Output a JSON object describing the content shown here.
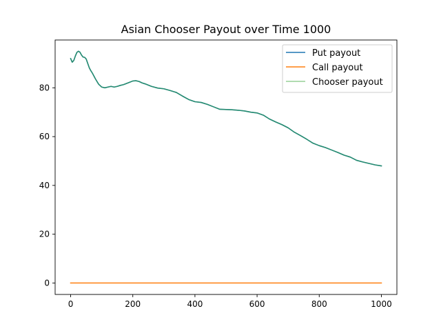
{
  "chart_data": {
    "type": "line",
    "title": "Asian Chooser Payout over Time 1000",
    "xlabel": "",
    "ylabel": "",
    "xlim": [
      -50,
      1050
    ],
    "ylim": [
      -4.7,
      99.6
    ],
    "xticks": [
      0,
      200,
      400,
      600,
      800,
      1000
    ],
    "yticks": [
      0,
      20,
      40,
      60,
      80
    ],
    "grid": false,
    "legend": "top-right",
    "series": [
      {
        "name": "Put payout",
        "color": "#1f77b4",
        "x": [
          0,
          5,
          10,
          15,
          20,
          25,
          30,
          35,
          40,
          45,
          50,
          55,
          60,
          65,
          70,
          75,
          80,
          90,
          100,
          110,
          120,
          130,
          140,
          150,
          160,
          170,
          180,
          190,
          200,
          210,
          220,
          230,
          240,
          260,
          280,
          300,
          320,
          340,
          360,
          380,
          400,
          420,
          440,
          460,
          480,
          500,
          520,
          540,
          560,
          580,
          600,
          620,
          640,
          660,
          680,
          700,
          720,
          740,
          760,
          780,
          800,
          820,
          840,
          860,
          880,
          900,
          920,
          940,
          960,
          980,
          1000
        ],
        "values": [
          92,
          90.5,
          91.2,
          93,
          94.5,
          95,
          94.6,
          93.4,
          92.6,
          92.5,
          91.8,
          90,
          88.2,
          87,
          86,
          84.8,
          83.6,
          81.5,
          80.3,
          80.0,
          80.3,
          80.6,
          80.3,
          80.6,
          81.0,
          81.3,
          81.8,
          82.3,
          82.8,
          82.9,
          82.6,
          82.0,
          81.6,
          80.6,
          79.9,
          79.6,
          78.9,
          78.1,
          76.6,
          75.2,
          74.3,
          74.0,
          73.2,
          72.2,
          71.2,
          71.1,
          71.0,
          70.8,
          70.5,
          70.0,
          69.7,
          68.8,
          67.2,
          66.0,
          64.9,
          63.6,
          61.8,
          60.4,
          58.9,
          57.3,
          56.3,
          55.5,
          54.5,
          53.5,
          52.4,
          51.6,
          50.3,
          49.6,
          49.0,
          48.4,
          48.0
        ]
      },
      {
        "name": "Call payout",
        "color": "#ff7f0e",
        "x": [
          0,
          1000
        ],
        "values": [
          0,
          0
        ]
      },
      {
        "name": "Chooser payout",
        "color": "#2ca02c",
        "opacity": 0.5,
        "x": [
          0,
          5,
          10,
          15,
          20,
          25,
          30,
          35,
          40,
          45,
          50,
          55,
          60,
          65,
          70,
          75,
          80,
          90,
          100,
          110,
          120,
          130,
          140,
          150,
          160,
          170,
          180,
          190,
          200,
          210,
          220,
          230,
          240,
          260,
          280,
          300,
          320,
          340,
          360,
          380,
          400,
          420,
          440,
          460,
          480,
          500,
          520,
          540,
          560,
          580,
          600,
          620,
          640,
          660,
          680,
          700,
          720,
          740,
          760,
          780,
          800,
          820,
          840,
          860,
          880,
          900,
          920,
          940,
          960,
          980,
          1000
        ],
        "values": [
          92,
          90.5,
          91.2,
          93,
          94.5,
          95,
          94.6,
          93.4,
          92.6,
          92.5,
          91.8,
          90,
          88.2,
          87,
          86,
          84.8,
          83.6,
          81.5,
          80.3,
          80.0,
          80.3,
          80.6,
          80.3,
          80.6,
          81.0,
          81.3,
          81.8,
          82.3,
          82.8,
          82.9,
          82.6,
          82.0,
          81.6,
          80.6,
          79.9,
          79.6,
          78.9,
          78.1,
          76.6,
          75.2,
          74.3,
          74.0,
          73.2,
          72.2,
          71.2,
          71.1,
          71.0,
          70.8,
          70.5,
          70.0,
          69.7,
          68.8,
          67.2,
          66.0,
          64.9,
          63.6,
          61.8,
          60.4,
          58.9,
          57.3,
          56.3,
          55.5,
          54.5,
          53.5,
          52.4,
          51.6,
          50.3,
          49.6,
          49.0,
          48.4,
          48.0
        ]
      }
    ]
  }
}
